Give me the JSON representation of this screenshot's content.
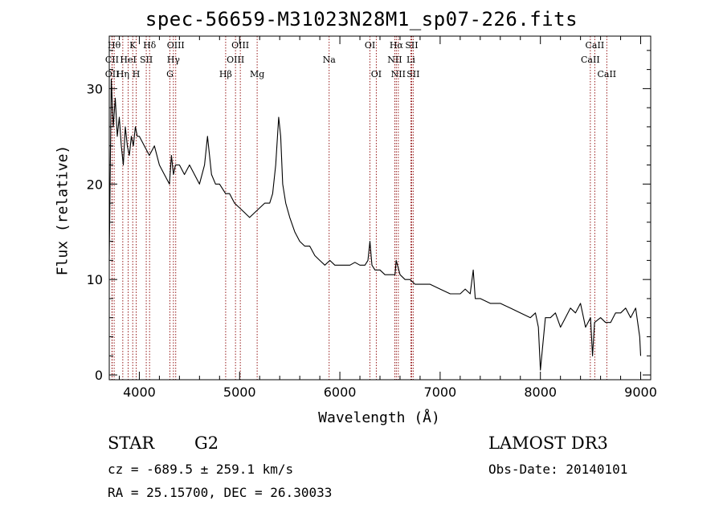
{
  "chart_data": {
    "type": "line",
    "title": "spec-56659-M31023N28M1_sp07-226.fits",
    "xlabel": "Wavelength (Å)",
    "ylabel": "Flux (relative)",
    "xlim": [
      3700,
      9100
    ],
    "ylim": [
      -0.5,
      35.5
    ],
    "xticks": [
      4000,
      5000,
      6000,
      7000,
      8000,
      9000
    ],
    "yticks": [
      0,
      10,
      20,
      30
    ],
    "grid": false,
    "legend": "none",
    "series": [
      {
        "x": [
          3700,
          3720,
          3740,
          3760,
          3780,
          3800,
          3820,
          3840,
          3860,
          3880,
          3900,
          3920,
          3940,
          3960,
          3980,
          4000,
          4050,
          4100,
          4150,
          4200,
          4250,
          4300,
          4320,
          4340,
          4360,
          4400,
          4450,
          4500,
          4550,
          4600,
          4650,
          4680,
          4700,
          4720,
          4760,
          4800,
          4860,
          4900,
          4950,
          5000,
          5050,
          5100,
          5150,
          5200,
          5250,
          5300,
          5330,
          5360,
          5390,
          5410,
          5430,
          5460,
          5500,
          5550,
          5600,
          5650,
          5700,
          5750,
          5800,
          5850,
          5900,
          5950,
          6000,
          6050,
          6100,
          6150,
          6200,
          6250,
          6280,
          6300,
          6320,
          6350,
          6400,
          6450,
          6500,
          6550,
          6562,
          6600,
          6650,
          6700,
          6750,
          6800,
          6900,
          7000,
          7100,
          7200,
          7250,
          7300,
          7330,
          7350,
          7400,
          7500,
          7600,
          7700,
          7800,
          7900,
          7950,
          7980,
          8000,
          8050,
          8100,
          8150,
          8200,
          8250,
          8300,
          8350,
          8400,
          8450,
          8500,
          8520,
          8540,
          8600,
          8650,
          8700,
          8750,
          8800,
          8850,
          8900,
          8950,
          8990,
          9000
        ],
        "y": [
          12,
          31,
          26,
          29,
          25,
          27,
          24,
          22,
          26,
          24,
          23,
          25,
          24,
          26,
          25,
          25,
          24,
          23,
          24,
          22,
          21,
          20,
          23,
          21,
          22,
          22,
          21,
          22,
          21,
          20,
          22,
          25,
          23,
          21,
          20,
          20,
          19,
          19,
          18,
          17.5,
          17,
          16.5,
          17,
          17.5,
          18,
          18,
          19,
          22,
          27,
          25,
          20,
          18,
          16.5,
          15,
          14,
          13.5,
          13.5,
          12.5,
          12,
          11.5,
          12,
          11.5,
          11.5,
          11.5,
          11.5,
          11.8,
          11.5,
          11.5,
          12,
          14,
          11.5,
          11,
          11,
          10.5,
          10.5,
          10.5,
          12,
          10.5,
          10,
          10,
          9.5,
          9.5,
          9.5,
          9,
          8.5,
          8.5,
          9,
          8.5,
          11,
          8,
          8,
          7.5,
          7.5,
          7,
          6.5,
          6,
          6.5,
          5,
          0.5,
          6,
          6,
          6.5,
          5,
          6,
          7,
          6.5,
          7.5,
          5,
          6,
          2,
          5.5,
          6,
          5.5,
          5.5,
          6.5,
          6.5,
          7,
          6,
          7,
          4,
          2
        ]
      }
    ],
    "annotations": [
      {
        "label": "CII",
        "x": 3727,
        "row": 2
      },
      {
        "label": "OII",
        "x": 3729,
        "row": 3
      },
      {
        "label": "Hθ",
        "x": 3749,
        "row": 1
      },
      {
        "label": "Hη",
        "x": 3835,
        "row": 3
      },
      {
        "label": "HeI",
        "x": 3889,
        "row": 2
      },
      {
        "label": "K",
        "x": 3934,
        "row": 1
      },
      {
        "label": "SII",
        "x": 4069,
        "row": 2
      },
      {
        "label": "H",
        "x": 3969,
        "row": 3
      },
      {
        "label": "Hδ",
        "x": 4102,
        "row": 1
      },
      {
        "label": "OIII",
        "x": 4363,
        "row": 1
      },
      {
        "label": "Hγ",
        "x": 4340,
        "row": 2
      },
      {
        "label": "G",
        "x": 4305,
        "row": 3
      },
      {
        "label": "Hβ",
        "x": 4861,
        "row": 3
      },
      {
        "label": "OIII",
        "x": 4959,
        "row": 2
      },
      {
        "label": "OIII",
        "x": 5007,
        "row": 1
      },
      {
        "label": "Mg",
        "x": 5175,
        "row": 3
      },
      {
        "label": "Na",
        "x": 5893,
        "row": 2
      },
      {
        "label": "OI",
        "x": 6300,
        "row": 1
      },
      {
        "label": "OI",
        "x": 6363,
        "row": 3
      },
      {
        "label": "Hα",
        "x": 6563,
        "row": 1
      },
      {
        "label": "NII",
        "x": 6548,
        "row": 2
      },
      {
        "label": "NII",
        "x": 6583,
        "row": 3
      },
      {
        "label": "SII",
        "x": 6716,
        "row": 1
      },
      {
        "label": "Li",
        "x": 6708,
        "row": 2
      },
      {
        "label": "SII",
        "x": 6731,
        "row": 3
      },
      {
        "label": "CaII",
        "x": 8542,
        "row": 1
      },
      {
        "label": "CaII",
        "x": 8498,
        "row": 2
      },
      {
        "label": "CaII",
        "x": 8662,
        "row": 3
      }
    ]
  },
  "info": {
    "class": "STAR",
    "subclass": "G2",
    "survey": "LAMOST DR3",
    "cz": "cz = -689.5 ± 259.1 km/s",
    "obsdate": "Obs-Date: 20140101",
    "radec": "RA =  25.15700, DEC =  26.30033"
  }
}
